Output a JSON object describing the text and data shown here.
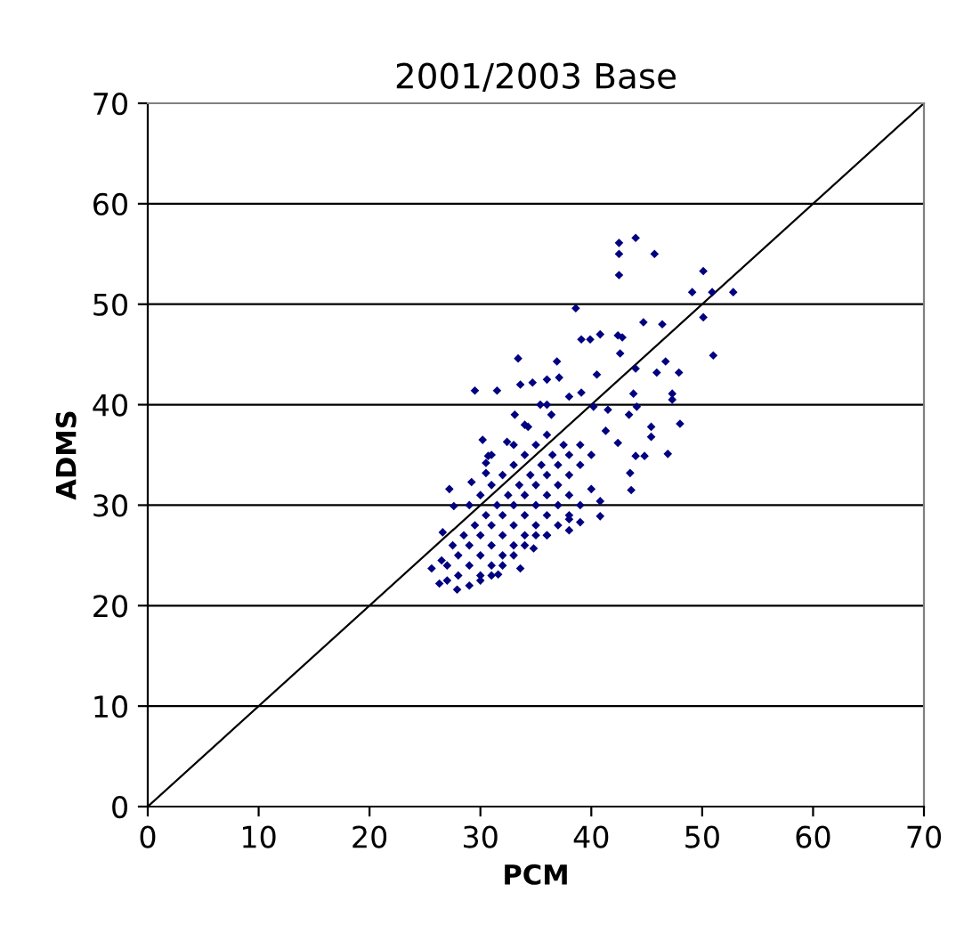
{
  "chart_data": {
    "type": "scatter",
    "title": "2001/2003 Base",
    "xlabel": "PCM",
    "ylabel": "ADMS",
    "xlim": [
      0,
      70
    ],
    "xticks": [
      0,
      10,
      20,
      30,
      40,
      50,
      60,
      70
    ],
    "ylim": [
      0,
      70
    ],
    "yticks": [
      0,
      10,
      20,
      30,
      40,
      50,
      60,
      70
    ],
    "grid": "y",
    "marker": "diamond",
    "series": [
      {
        "color": "#000080",
        "x": [
          42.5,
          44.0,
          42.5,
          45.7,
          42.5,
          50.1,
          49.1,
          50.9,
          52.8,
          50.1,
          51.0,
          38.6,
          44.7,
          46.4,
          39.1,
          39.9,
          40.8,
          42.4,
          42.8,
          33.4,
          36.9,
          42.6,
          44.0,
          46.7,
          45.9,
          47.9,
          40.5,
          29.5,
          31.5,
          33.6,
          34.7,
          36.0,
          37.1,
          47.3,
          47.3,
          43.8,
          38.0,
          39.1,
          35.4,
          40.2,
          41.5,
          44.1,
          43.4,
          48.0,
          45.4,
          45.4,
          33.1,
          30.2,
          46.9,
          44.0,
          44.8,
          42.4,
          41.3,
          30.7,
          30.5,
          43.5,
          43.6,
          27.2,
          40.0,
          40.8,
          40.8,
          39.0,
          38.0,
          36.0,
          34.8,
          33.6,
          31.6,
          27.9,
          26.3,
          25.6,
          26.6,
          27.6,
          29.2,
          30.5,
          32.4,
          34.3,
          36.4,
          27,
          28,
          28,
          29,
          29,
          30,
          30,
          30,
          31,
          31,
          31,
          32,
          32,
          32,
          33,
          33,
          33,
          34,
          34,
          34,
          35,
          35,
          35,
          36,
          36,
          36,
          37,
          37,
          37,
          38,
          38,
          38,
          39,
          39,
          40,
          27.5,
          28.5,
          29.5,
          30.5,
          31.5,
          32.5,
          33.5,
          34.5,
          35.5,
          36.5,
          37.5,
          29,
          30,
          31,
          32,
          33,
          34,
          35,
          36,
          33,
          31,
          34,
          36,
          26.5,
          27,
          29,
          30,
          31,
          32,
          33,
          34,
          35,
          36,
          37,
          38,
          39,
          38
        ],
        "values": [
          56.1,
          56.6,
          55.0,
          55.0,
          52.9,
          53.3,
          51.2,
          51.2,
          51.2,
          48.7,
          44.9,
          49.6,
          48.2,
          48.0,
          46.5,
          46.5,
          47.0,
          46.9,
          46.7,
          44.6,
          44.3,
          45.1,
          43.6,
          44.3,
          43.2,
          43.2,
          43.0,
          41.4,
          41.4,
          42.0,
          42.2,
          42.5,
          42.7,
          41.1,
          40.5,
          41.1,
          40.8,
          41.2,
          40.0,
          39.8,
          39.5,
          39.8,
          39.0,
          38.1,
          37.8,
          36.8,
          39.0,
          36.5,
          35.1,
          34.9,
          34.9,
          36.2,
          37.4,
          34.9,
          33.2,
          33.2,
          31.5,
          31.6,
          31.6,
          30.4,
          28.9,
          28.3,
          28.6,
          27.0,
          25.7,
          23.7,
          23.1,
          21.6,
          22.2,
          23.7,
          27.3,
          29.9,
          32.3,
          34.2,
          36.3,
          37.8,
          39.0,
          24,
          23,
          25,
          24,
          26,
          25,
          27,
          23,
          26,
          28,
          24,
          27,
          29,
          25,
          28,
          30,
          26,
          29,
          31,
          27,
          30,
          32,
          28,
          31,
          33,
          29,
          32,
          34,
          30,
          33,
          35,
          31,
          34,
          36,
          35,
          26,
          27,
          28,
          29,
          30,
          31,
          32,
          33,
          34,
          35,
          36,
          30,
          31,
          32,
          33,
          34,
          35,
          36,
          37,
          36,
          35,
          38,
          40,
          24.5,
          22.5,
          22,
          22.5,
          23,
          24,
          25,
          26,
          27,
          27,
          28,
          29,
          30,
          27.5
        ]
      },
      {
        "type": "line",
        "color": "#000000",
        "x": [
          0,
          70
        ],
        "values": [
          0,
          70
        ],
        "marker": "none"
      }
    ]
  }
}
